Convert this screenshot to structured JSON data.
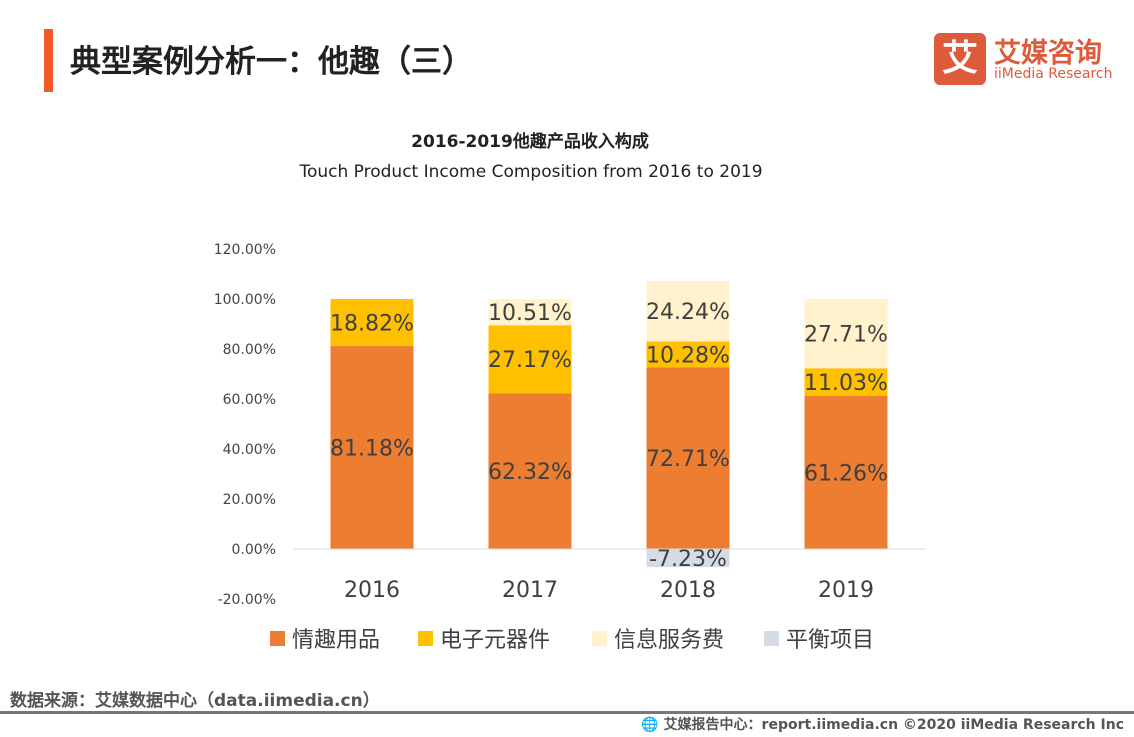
{
  "header": {
    "title": "典型案例分析一：他趣（三）"
  },
  "logo": {
    "mark": "艾",
    "cn": "艾媒咨询",
    "en": "iiMedia Research"
  },
  "colors": {
    "accent": "#f05a28",
    "brand": "#dd5a3a"
  },
  "chart_data": {
    "type": "bar",
    "stacked": true,
    "title": "2016-2019他趣产品收入构成",
    "subtitle": "Touch Product Income Composition from 2016 to 2019",
    "categories": [
      "2016",
      "2017",
      "2018",
      "2019"
    ],
    "ylim": [
      -20,
      120
    ],
    "yticks": [
      "-20.00%",
      "0.00%",
      "20.00%",
      "40.00%",
      "60.00%",
      "80.00%",
      "100.00%",
      "120.00%"
    ],
    "grid": false,
    "legend_position": "bottom",
    "series": [
      {
        "name": "情趣用品",
        "color": "#ed7d31",
        "values": [
          81.18,
          62.32,
          72.71,
          61.26
        ],
        "labels": [
          "81.18%",
          "62.32%",
          "72.71%",
          "61.26%"
        ]
      },
      {
        "name": "电子元器件",
        "color": "#ffc000",
        "values": [
          18.82,
          27.17,
          10.28,
          11.03
        ],
        "labels": [
          "18.82%",
          "27.17%",
          "10.28%",
          "11.03%"
        ]
      },
      {
        "name": "信息服务费",
        "color": "#fff2cc",
        "values": [
          0,
          10.51,
          24.24,
          27.71
        ],
        "labels": [
          "",
          "10.51%",
          "24.24%",
          "27.71%"
        ]
      },
      {
        "name": "平衡项目",
        "color": "#d6dce5",
        "values": [
          0,
          0,
          -7.23,
          0
        ],
        "labels": [
          "",
          "",
          "-7.23%",
          ""
        ]
      }
    ]
  },
  "footer": {
    "source": "数据来源：艾媒数据中心（data.iimedia.cn）",
    "report": "艾媒报告中心：report.iimedia.cn   ©2020  iiMedia Research  Inc"
  }
}
